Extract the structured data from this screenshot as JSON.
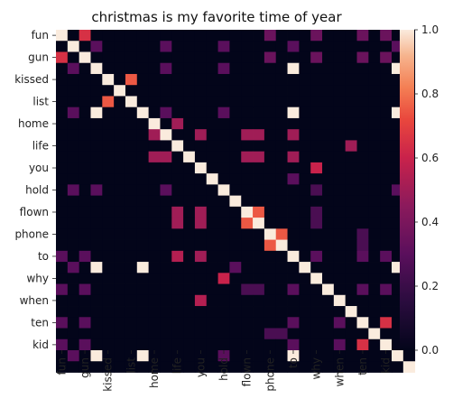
{
  "chart_data": {
    "type": "heatmap",
    "title": "christmas is my favorite time of year",
    "rows": [
      "fun",
      "",
      "gun",
      "",
      "kissed",
      "",
      "list",
      "",
      "home",
      "",
      "life",
      "",
      "you",
      "",
      "hold",
      "",
      "flown",
      "",
      "phone",
      "",
      "to",
      "",
      "why",
      "",
      "when",
      "",
      "ten",
      "",
      "kid"
    ],
    "columns": [
      "fun",
      "",
      "gun",
      "",
      "kissed",
      "",
      "list",
      "",
      "home",
      "",
      "life",
      "",
      "you",
      "",
      "hold",
      "",
      "flown",
      "",
      "phone",
      "",
      "to",
      "",
      "why",
      "",
      "when",
      "",
      "ten",
      "",
      "kid"
    ],
    "values": [
      [
        1,
        0,
        0.65,
        0,
        0,
        0,
        0,
        0,
        0,
        0,
        0,
        0,
        0,
        0,
        0,
        0,
        0,
        0,
        0.35,
        0,
        0,
        0,
        0.35,
        0,
        0,
        0,
        0.35,
        0,
        0.35,
        0,
        0
      ],
      [
        0,
        1,
        0,
        0.3,
        0,
        0,
        0,
        0,
        0,
        0.3,
        0,
        0,
        0,
        0,
        0.3,
        0,
        0,
        0,
        0,
        0,
        0.3,
        0,
        0,
        0,
        0,
        0,
        0,
        0,
        0,
        0.3,
        0
      ],
      [
        0.65,
        0,
        1,
        0,
        0,
        0,
        0,
        0,
        0,
        0,
        0,
        0,
        0,
        0,
        0,
        0,
        0,
        0,
        0.35,
        0,
        0,
        0,
        0.35,
        0,
        0,
        0,
        0.35,
        0,
        0.35,
        0,
        0
      ],
      [
        0,
        0.3,
        0,
        1,
        0,
        0,
        0,
        0,
        0,
        0.3,
        0,
        0,
        0,
        0,
        0.3,
        0,
        0,
        0,
        0,
        0,
        1,
        0,
        0,
        0,
        0,
        0,
        0,
        0,
        0,
        1,
        0
      ],
      [
        0,
        0,
        0,
        0,
        1,
        0,
        0.75,
        0,
        0,
        0,
        0,
        0,
        0,
        0,
        0,
        0,
        0,
        0,
        0,
        0,
        0,
        0,
        0,
        0,
        0,
        0,
        0,
        0,
        0,
        0,
        0
      ],
      [
        0,
        0,
        0,
        0,
        0,
        1,
        0,
        0,
        0,
        0,
        0,
        0,
        0,
        0,
        0,
        0,
        0,
        0,
        0,
        0,
        0,
        0,
        0,
        0,
        0,
        0,
        0,
        0,
        0,
        0,
        0
      ],
      [
        0,
        0,
        0,
        0,
        0.75,
        0,
        1,
        0,
        0,
        0,
        0,
        0,
        0,
        0,
        0,
        0,
        0,
        0,
        0,
        0,
        0,
        0,
        0,
        0,
        0,
        0,
        0,
        0,
        0,
        0,
        0
      ],
      [
        0,
        0.3,
        0,
        1,
        0,
        0,
        0,
        1,
        0,
        0.3,
        0,
        0,
        0,
        0,
        0.3,
        0,
        0,
        0,
        0,
        0,
        1,
        0,
        0,
        0,
        0,
        0,
        0,
        0,
        0,
        1,
        0
      ],
      [
        0,
        0,
        0,
        0,
        0,
        0,
        0,
        0,
        1,
        0,
        0.5,
        0,
        0,
        0,
        0,
        0,
        0,
        0,
        0,
        0,
        0,
        0,
        0,
        0,
        0,
        0,
        0,
        0,
        0,
        0,
        0
      ],
      [
        0,
        0,
        0,
        0,
        0,
        0,
        0,
        0,
        0.5,
        1,
        0,
        0,
        0.5,
        0,
        0,
        0,
        0.5,
        0.5,
        0,
        0,
        0.5,
        0,
        0,
        0,
        0,
        0,
        0,
        0,
        0,
        0,
        0
      ],
      [
        0,
        0,
        0,
        0,
        0,
        0,
        0,
        0,
        0,
        0,
        1,
        0,
        0,
        0,
        0,
        0,
        0,
        0,
        0,
        0,
        0,
        0,
        0,
        0,
        0,
        0.5,
        0,
        0,
        0,
        0,
        0
      ],
      [
        0,
        0,
        0,
        0,
        0,
        0,
        0,
        0,
        0.5,
        0.5,
        0,
        1,
        0,
        0,
        0,
        0,
        0.5,
        0.5,
        0,
        0,
        0.5,
        0,
        0,
        0,
        0,
        0,
        0,
        0,
        0,
        0,
        0
      ],
      [
        0,
        0,
        0,
        0,
        0,
        0,
        0,
        0,
        0,
        0,
        0,
        0,
        1,
        0,
        0,
        0,
        0,
        0,
        0,
        0,
        0,
        0,
        0.6,
        0,
        0,
        0,
        0,
        0,
        0,
        0,
        0
      ],
      [
        0,
        0,
        0,
        0,
        0,
        0,
        0,
        0,
        0,
        0,
        0,
        0,
        0,
        1,
        0,
        0,
        0,
        0,
        0,
        0,
        0.3,
        0,
        0,
        0,
        0,
        0,
        0,
        0,
        0,
        0,
        0
      ],
      [
        0,
        0.3,
        0,
        0.3,
        0,
        0,
        0,
        0,
        0,
        0.3,
        0,
        0,
        0,
        0,
        1,
        0,
        0,
        0,
        0,
        0,
        0,
        0,
        0.25,
        0,
        0,
        0,
        0,
        0,
        0,
        0.3,
        0
      ],
      [
        0,
        0,
        0,
        0,
        0,
        0,
        0,
        0,
        0,
        0,
        0,
        0,
        0,
        0,
        0,
        1,
        0,
        0,
        0,
        0,
        0,
        0,
        0,
        0,
        0,
        0,
        0,
        0,
        0,
        0,
        0
      ],
      [
        0,
        0,
        0,
        0,
        0,
        0,
        0,
        0,
        0,
        0,
        0.5,
        0,
        0.5,
        0,
        0,
        0,
        1,
        0.75,
        0,
        0,
        0,
        0,
        0.25,
        0,
        0,
        0,
        0,
        0,
        0,
        0,
        0
      ],
      [
        0,
        0,
        0,
        0,
        0,
        0,
        0,
        0,
        0,
        0,
        0.5,
        0,
        0.5,
        0,
        0,
        0,
        0.75,
        1,
        0,
        0,
        0,
        0,
        0.25,
        0,
        0,
        0,
        0,
        0,
        0,
        0,
        0
      ],
      [
        0,
        0,
        0,
        0,
        0,
        0,
        0,
        0,
        0,
        0,
        0,
        0,
        0,
        0,
        0,
        0,
        0,
        0,
        1,
        0.75,
        0,
        0,
        0,
        0,
        0,
        0,
        0.25,
        0,
        0,
        0,
        0
      ],
      [
        0,
        0,
        0,
        0,
        0,
        0,
        0,
        0,
        0,
        0,
        0,
        0,
        0,
        0,
        0,
        0,
        0,
        0,
        0.75,
        1,
        0,
        0,
        0,
        0,
        0,
        0,
        0.25,
        0,
        0,
        0,
        0
      ],
      [
        0.3,
        0,
        0.3,
        0,
        0,
        0,
        0,
        0,
        0,
        0,
        0.55,
        0,
        0.5,
        0,
        0,
        0,
        0,
        0,
        0,
        0,
        1,
        0,
        0.3,
        0,
        0,
        0,
        0.3,
        0,
        0.3,
        0,
        0
      ],
      [
        0,
        0.3,
        0,
        1,
        0,
        0,
        0,
        1,
        0,
        0,
        0,
        0,
        0,
        0,
        0,
        0.3,
        0,
        0,
        0,
        0,
        0,
        1,
        0,
        0,
        0,
        0,
        0,
        0,
        0,
        1,
        0
      ],
      [
        0,
        0,
        0,
        0,
        0,
        0,
        0,
        0,
        0,
        0,
        0,
        0,
        0,
        0,
        0.6,
        0,
        0,
        0,
        0,
        0,
        0,
        0,
        1,
        0,
        0,
        0,
        0,
        0,
        0,
        0,
        0
      ],
      [
        0.3,
        0,
        0.3,
        0,
        0,
        0,
        0,
        0,
        0,
        0,
        0,
        0,
        0,
        0,
        0,
        0,
        0.25,
        0.25,
        0,
        0,
        0.3,
        0,
        0,
        1,
        0,
        0,
        0.3,
        0,
        0.3,
        0,
        0
      ],
      [
        0,
        0,
        0,
        0,
        0,
        0,
        0,
        0,
        0,
        0,
        0,
        0,
        0.55,
        0,
        0,
        0,
        0,
        0,
        0,
        0,
        0,
        0,
        0,
        0,
        1,
        0,
        0,
        0,
        0,
        0,
        0
      ],
      [
        0,
        0,
        0,
        0,
        0,
        0,
        0,
        0,
        0,
        0,
        0,
        0,
        0,
        0,
        0,
        0,
        0,
        0,
        0,
        0,
        0,
        0,
        0,
        0,
        0,
        1,
        0,
        0,
        0,
        0,
        0
      ],
      [
        0.3,
        0,
        0.3,
        0,
        0,
        0,
        0,
        0,
        0,
        0,
        0,
        0,
        0,
        0,
        0,
        0,
        0,
        0,
        0,
        0,
        0.3,
        0,
        0,
        0,
        0.3,
        0,
        1,
        0,
        0.65,
        0,
        0
      ],
      [
        0,
        0,
        0,
        0,
        0,
        0,
        0,
        0,
        0,
        0,
        0,
        0,
        0,
        0,
        0,
        0,
        0,
        0,
        0.25,
        0.25,
        0,
        0,
        0,
        0,
        0,
        0,
        0,
        1,
        0,
        0,
        0
      ],
      [
        0.3,
        0,
        0.3,
        0,
        0,
        0,
        0,
        0,
        0,
        0,
        0,
        0,
        0,
        0,
        0,
        0,
        0,
        0,
        0,
        0,
        0.3,
        0,
        0,
        0,
        0.3,
        0,
        0.65,
        0,
        1,
        0,
        0
      ],
      [
        0,
        0.3,
        0,
        1,
        0,
        0,
        0,
        1,
        0,
        0,
        0,
        0,
        0,
        0,
        0.3,
        0,
        0,
        0,
        0,
        0,
        1,
        0,
        0,
        0,
        0,
        0,
        0,
        0,
        0,
        1,
        0
      ],
      [
        0,
        0,
        0,
        0,
        0,
        0,
        0,
        0,
        0,
        0,
        0,
        0,
        0,
        0,
        0,
        0,
        0,
        0,
        0,
        0,
        0,
        0,
        0,
        0,
        0,
        0,
        0,
        0,
        0,
        0,
        1
      ]
    ],
    "vmin": 0,
    "vmax": 1,
    "colorbar_ticks": [
      "0.0",
      "0.2",
      "0.4",
      "0.6",
      "0.8",
      "1.0"
    ],
    "colormap": "rocket"
  }
}
